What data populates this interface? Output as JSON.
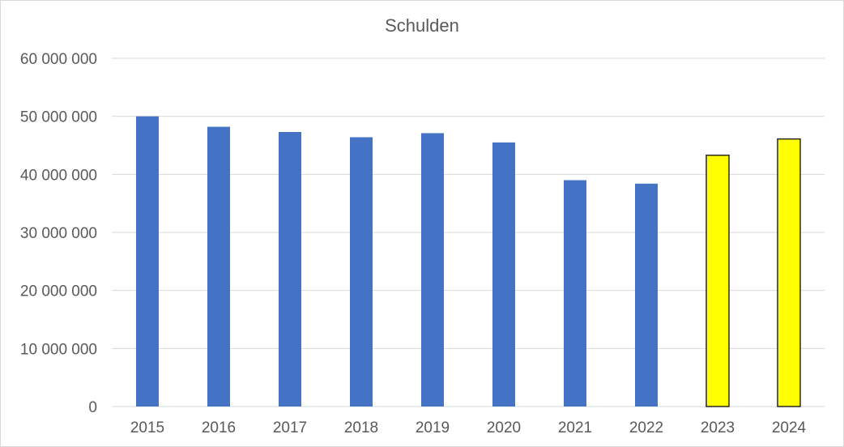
{
  "chart_data": {
    "type": "bar",
    "title": "Schulden",
    "xlabel": "",
    "ylabel": "",
    "categories": [
      "2015",
      "2016",
      "2017",
      "2018",
      "2019",
      "2020",
      "2021",
      "2022",
      "2023",
      "2024"
    ],
    "values": [
      50000000,
      48200000,
      47300000,
      46400000,
      47100000,
      45500000,
      39000000,
      38400000,
      43300000,
      46100000
    ],
    "ylim": [
      0,
      60000000
    ],
    "yticks": [
      0,
      10000000,
      20000000,
      30000000,
      40000000,
      50000000,
      60000000
    ],
    "ytick_labels": [
      "0",
      "10 000 000",
      "20 000 000",
      "30 000 000",
      "40 000 000",
      "50 000 000",
      "60 000 000"
    ],
    "grid": true,
    "legend": "none",
    "bar_colors": [
      "#4472c4",
      "#4472c4",
      "#4472c4",
      "#4472c4",
      "#4472c4",
      "#4472c4",
      "#4472c4",
      "#4472c4",
      "#ffff00",
      "#ffff00"
    ],
    "highlight_border_color": "#262626"
  }
}
